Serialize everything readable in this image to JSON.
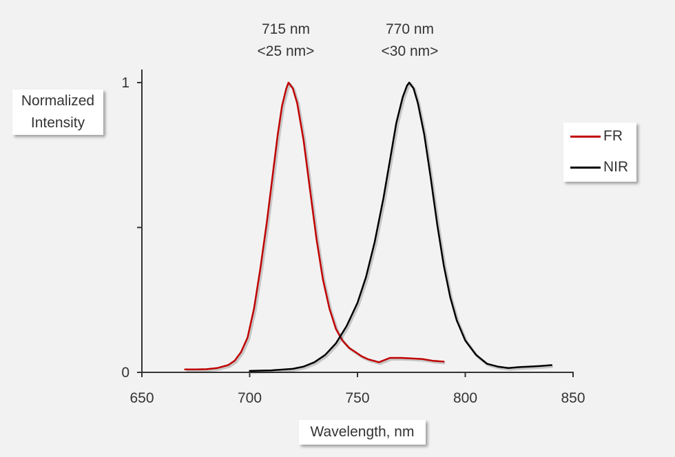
{
  "chart_data": {
    "type": "line",
    "xlabel": "Wavelength, nm",
    "ylabel_lines": [
      "Normalized",
      "Intensity"
    ],
    "xlim": [
      650,
      850
    ],
    "ylim": [
      0,
      1
    ],
    "x_ticks": [
      650,
      700,
      750,
      800,
      850
    ],
    "y_tick_labels": [
      {
        "value": 0,
        "label": "0"
      },
      {
        "value": 1,
        "label": "1"
      }
    ],
    "y_minor_ticks": [
      0.5
    ],
    "grid": false,
    "legend_position": "right",
    "peak_labels": [
      {
        "line1": "715 nm",
        "line2": "<25 nm>"
      },
      {
        "line1": "770 nm",
        "line2": "<30 nm>"
      }
    ],
    "series": [
      {
        "name": "FR",
        "color": "#c00000",
        "points": [
          [
            670,
            0.01
          ],
          [
            675,
            0.01
          ],
          [
            680,
            0.011
          ],
          [
            685,
            0.015
          ],
          [
            690,
            0.025
          ],
          [
            693,
            0.04
          ],
          [
            696,
            0.07
          ],
          [
            699,
            0.12
          ],
          [
            702,
            0.22
          ],
          [
            705,
            0.36
          ],
          [
            708,
            0.52
          ],
          [
            711,
            0.7
          ],
          [
            713,
            0.82
          ],
          [
            715,
            0.92
          ],
          [
            717,
            0.98
          ],
          [
            718,
            1.0
          ],
          [
            720,
            0.98
          ],
          [
            722,
            0.93
          ],
          [
            725,
            0.8
          ],
          [
            728,
            0.63
          ],
          [
            731,
            0.46
          ],
          [
            734,
            0.32
          ],
          [
            737,
            0.22
          ],
          [
            740,
            0.15
          ],
          [
            743,
            0.11
          ],
          [
            746,
            0.085
          ],
          [
            749,
            0.07
          ],
          [
            752,
            0.055
          ],
          [
            755,
            0.045
          ],
          [
            760,
            0.035
          ],
          [
            765,
            0.05
          ],
          [
            770,
            0.05
          ],
          [
            775,
            0.048
          ],
          [
            780,
            0.046
          ],
          [
            785,
            0.04
          ],
          [
            790,
            0.037
          ]
        ]
      },
      {
        "name": "NIR",
        "color": "#000000",
        "points": [
          [
            700,
            0.005
          ],
          [
            710,
            0.007
          ],
          [
            720,
            0.012
          ],
          [
            725,
            0.02
          ],
          [
            730,
            0.035
          ],
          [
            735,
            0.06
          ],
          [
            740,
            0.1
          ],
          [
            745,
            0.16
          ],
          [
            750,
            0.24
          ],
          [
            754,
            0.33
          ],
          [
            758,
            0.45
          ],
          [
            762,
            0.6
          ],
          [
            765,
            0.73
          ],
          [
            768,
            0.86
          ],
          [
            771,
            0.95
          ],
          [
            773,
            0.99
          ],
          [
            774,
            1.0
          ],
          [
            776,
            0.98
          ],
          [
            778,
            0.93
          ],
          [
            781,
            0.82
          ],
          [
            784,
            0.67
          ],
          [
            787,
            0.51
          ],
          [
            790,
            0.37
          ],
          [
            793,
            0.26
          ],
          [
            796,
            0.18
          ],
          [
            800,
            0.11
          ],
          [
            805,
            0.06
          ],
          [
            810,
            0.03
          ],
          [
            815,
            0.02
          ],
          [
            820,
            0.015
          ],
          [
            825,
            0.018
          ],
          [
            830,
            0.02
          ],
          [
            835,
            0.022
          ],
          [
            840,
            0.025
          ]
        ]
      }
    ]
  }
}
